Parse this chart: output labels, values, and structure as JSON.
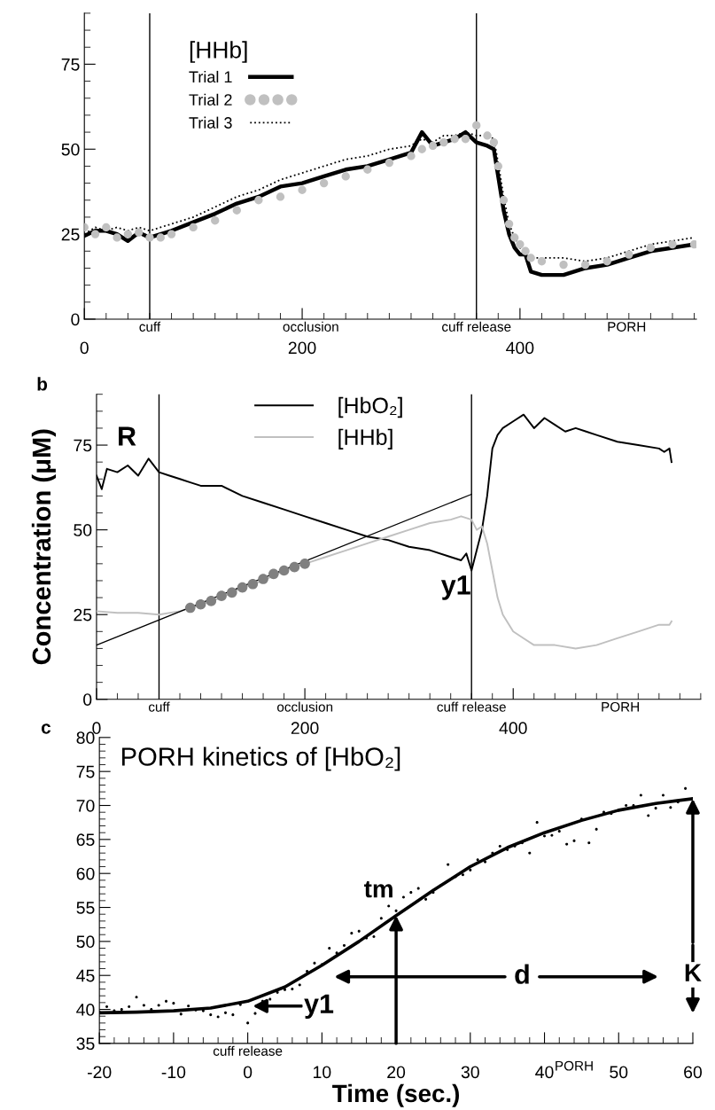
{
  "chart_data": [
    {
      "type": "line",
      "legend_title": "[HHb]",
      "legend": "top left",
      "xlim": [
        0,
        562
      ],
      "xticks": [
        0,
        200,
        400
      ],
      "ylim": [
        0,
        90
      ],
      "yticks": [
        0,
        25,
        50,
        75
      ],
      "x": [
        0,
        10,
        20,
        30,
        40,
        50,
        60,
        70,
        80,
        100,
        120,
        140,
        160,
        180,
        200,
        220,
        240,
        260,
        280,
        300,
        310,
        320,
        330,
        340,
        350,
        360,
        370,
        376,
        380,
        385,
        390,
        395,
        400,
        405,
        410,
        420,
        440,
        460,
        480,
        500,
        520,
        540,
        560
      ],
      "series": [
        {
          "name": "Trial 1",
          "color": "#000000",
          "values": [
            24.5,
            26,
            26,
            25,
            23,
            25.5,
            24,
            25,
            26,
            28.5,
            31,
            34,
            36,
            39,
            40,
            42,
            44,
            45,
            47,
            49,
            55,
            51,
            52,
            53,
            55,
            52,
            51,
            50,
            42,
            32,
            25,
            21,
            19,
            19,
            14,
            13,
            13,
            15,
            16,
            18,
            20,
            21,
            22
          ]
        },
        {
          "name": "Trial 2",
          "type": "scatter",
          "marker": "circle",
          "color": "#c0c0c0",
          "values": [
            27,
            25,
            27,
            24,
            25,
            25.5,
            24,
            24,
            25,
            27,
            29,
            32,
            35,
            36,
            38,
            40,
            42,
            44,
            46,
            48,
            50,
            51,
            52,
            53,
            53,
            57,
            54,
            52,
            45,
            35,
            28,
            24,
            22,
            20,
            18,
            17,
            16,
            16,
            17,
            19,
            21,
            22,
            22
          ]
        },
        {
          "name": "Trial 3",
          "line_style": "dotted",
          "color": "#000000",
          "values": [
            25,
            27,
            26,
            27,
            26,
            27,
            26,
            27,
            28,
            30,
            33,
            36,
            38,
            41,
            43,
            45,
            47,
            48,
            50,
            51,
            53,
            52,
            54,
            54,
            55,
            54,
            54,
            53,
            46,
            36,
            28,
            24,
            21,
            19,
            18,
            18,
            18,
            17,
            18,
            20,
            22,
            23,
            24
          ]
        }
      ],
      "ref_lines": [
        {
          "axis": "x",
          "value": 60,
          "label": "cuff",
          "color": "#000000"
        },
        {
          "axis": "x",
          "value": 360,
          "label": "cuff release",
          "color": "#000000"
        }
      ],
      "annotations": [
        "occlusion",
        "PORH"
      ]
    },
    {
      "type": "line",
      "ylabel": "Concentration (μM)",
      "legend": "top",
      "xlim": [
        0,
        580
      ],
      "xticks": [
        0,
        200,
        400
      ],
      "ylim": [
        0,
        90
      ],
      "yticks": [
        0,
        25,
        50,
        75
      ],
      "series": [
        {
          "name": "[HbO₂]",
          "color": "#000000",
          "x": [
            0,
            5,
            10,
            20,
            30,
            40,
            50,
            60,
            70,
            80,
            90,
            100,
            120,
            140,
            160,
            180,
            200,
            220,
            240,
            260,
            280,
            300,
            320,
            340,
            350,
            355,
            360,
            365,
            370,
            375,
            380,
            385,
            390,
            400,
            410,
            420,
            430,
            440,
            450,
            460,
            470,
            480,
            500,
            520,
            540,
            545,
            550,
            552
          ],
          "values": [
            66,
            62,
            68,
            67,
            69,
            66,
            71,
            67,
            66,
            65,
            64,
            63,
            63,
            60,
            58,
            56,
            54,
            52,
            50,
            48,
            47,
            45,
            44,
            42,
            41,
            43,
            38,
            44,
            50,
            60,
            74,
            78,
            80,
            82,
            84,
            80,
            83,
            81,
            79,
            80,
            79,
            78,
            76,
            75,
            74,
            73,
            74,
            70
          ]
        },
        {
          "name": "[HHb]",
          "color": "#c0c0c0",
          "x": [
            0,
            20,
            40,
            60,
            80,
            100,
            120,
            140,
            160,
            180,
            200,
            220,
            240,
            260,
            280,
            300,
            320,
            340,
            350,
            360,
            365,
            370,
            375,
            380,
            385,
            390,
            400,
            410,
            420,
            440,
            460,
            480,
            500,
            520,
            540,
            550,
            552
          ],
          "values": [
            26,
            25.5,
            25.5,
            25,
            26,
            28,
            30,
            33,
            35,
            38,
            40,
            42,
            44,
            46,
            48,
            50,
            52,
            53,
            54,
            53,
            50,
            51,
            46,
            38,
            30,
            25,
            20,
            18,
            16,
            16,
            15,
            16,
            18,
            20,
            22,
            22,
            23
          ]
        },
        {
          "type": "scatter",
          "marker": "circle",
          "color": "#808080",
          "x": [
            90,
            100,
            110,
            120,
            130,
            140,
            150,
            160,
            170,
            180,
            190,
            200
          ],
          "values": [
            27,
            28,
            29,
            30.5,
            31.5,
            33,
            34,
            35.5,
            37,
            38,
            39,
            40
          ]
        },
        {
          "color": "#000000",
          "x": [
            0,
            360
          ],
          "values": [
            16,
            60.5
          ]
        }
      ],
      "ref_lines": [
        {
          "axis": "x",
          "value": 60,
          "label": "cuff",
          "color": "#000000"
        },
        {
          "axis": "x",
          "value": 360,
          "label": "cuff release",
          "color": "#000000"
        }
      ],
      "annotations": [
        "b",
        "R",
        "y1",
        "occlusion",
        "PORH"
      ]
    },
    {
      "type": "line",
      "title": "PORH kinetics of [HbO₂]",
      "xlabel": "Time (sec.)",
      "xlim": [
        -20,
        60
      ],
      "xticks": [
        -20,
        -10,
        0,
        10,
        20,
        30,
        40,
        50,
        60
      ],
      "ylim": [
        35,
        80
      ],
      "yticks": [
        35,
        40,
        45,
        50,
        55,
        60,
        65,
        70,
        75,
        80
      ],
      "series": [
        {
          "type": "scatter",
          "marker": "circle",
          "color": "#000000",
          "x": [
            -20,
            -19,
            -18,
            -17,
            -16,
            -15,
            -14,
            -13,
            -12,
            -11,
            -10,
            -9,
            -8,
            -7,
            -6,
            -5,
            -4,
            -3,
            -2,
            -1,
            0,
            1,
            2,
            3,
            4,
            5,
            6,
            7,
            8,
            9,
            10,
            11,
            12,
            13,
            14,
            15,
            16,
            17,
            18,
            19,
            20,
            21,
            22,
            23,
            24,
            25,
            26,
            27,
            28,
            29,
            30,
            31,
            32,
            33,
            34,
            35,
            36,
            37,
            38,
            39,
            40,
            41,
            42,
            43,
            44,
            45,
            46,
            47,
            48,
            49,
            50,
            51,
            52,
            53,
            54,
            55,
            56,
            57,
            58,
            59,
            60
          ],
          "values": [
            39.6,
            40.4,
            39.8,
            40,
            40.4,
            41.8,
            40.6,
            40,
            40.6,
            41.2,
            40.9,
            39.3,
            40.5,
            39.9,
            39.8,
            39.2,
            38.9,
            39.5,
            39.2,
            40.7,
            38,
            39.4,
            41.2,
            41.5,
            42.5,
            42.9,
            43,
            43.6,
            45.6,
            46.8,
            46.6,
            49,
            48.3,
            49.4,
            51.2,
            51.5,
            50.5,
            50.7,
            53.4,
            55.2,
            54.5,
            56.5,
            57.2,
            57.8,
            56.2,
            57.2,
            58.2,
            61.3,
            59.5,
            59.8,
            60.5,
            62,
            61.7,
            63,
            64,
            63.5,
            64,
            64.5,
            63,
            67.5,
            65.5,
            65.6,
            66.2,
            64.3,
            64.8,
            68,
            64.5,
            66.5,
            69,
            68.8,
            69.3,
            70,
            70,
            71.5,
            68.5,
            69.6,
            71.5,
            69.7,
            70.5,
            72.5,
            71
          ]
        },
        {
          "color": "#000000",
          "x": [
            -20,
            -15,
            -10,
            -5,
            0,
            5,
            10,
            15,
            20,
            25,
            30,
            35,
            40,
            45,
            50,
            55,
            60
          ],
          "values": [
            39.5,
            39.6,
            39.8,
            40.2,
            41.2,
            43.3,
            46.5,
            50,
            53.8,
            57.5,
            61,
            63.8,
            66,
            67.8,
            69.3,
            70.3,
            71
          ]
        }
      ],
      "annotations": [
        "c",
        {
          "text": "tm",
          "x": 20,
          "y": 53.8
        },
        "y1",
        "d",
        {
          "text": "K",
          "x": 60,
          "y": 71
        },
        "cuff release",
        "PORH"
      ]
    }
  ]
}
